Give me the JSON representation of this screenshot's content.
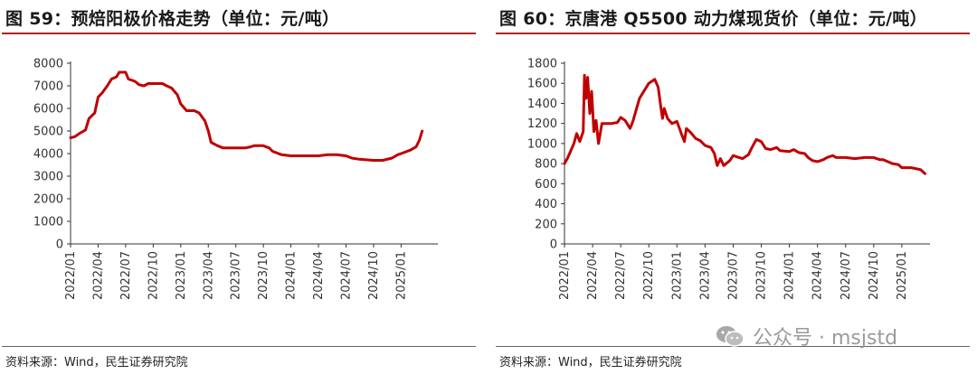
{
  "panels": [
    {
      "title": "图 59：预焙阳极价格走势（单位：元/吨）",
      "source": "资料来源：Wind，民生证券研究院"
    },
    {
      "title": "图 60：京唐港 Q5500 动力煤现货价（单位：元/吨）",
      "source": "资料来源：Wind，民生证券研究院"
    }
  ],
  "watermark": {
    "icon": "wechat-icon",
    "text": "公众号 · msjstd"
  },
  "colors": {
    "line": "#c00000",
    "axis": "#333333",
    "rule": "#b22222"
  },
  "chart_data": [
    {
      "type": "line",
      "title": "",
      "xlabel": "",
      "ylabel": "",
      "ylim": [
        0,
        8000
      ],
      "yticks": [
        0,
        1000,
        2000,
        3000,
        4000,
        5000,
        6000,
        7000,
        8000
      ],
      "xlim": [
        "2022-01",
        "2025-05"
      ],
      "xticks": [
        "2022/01",
        "2022/04",
        "2022/07",
        "2022/10",
        "2023/01",
        "2023/04",
        "2023/07",
        "2023/10",
        "2024/01",
        "2024/04",
        "2024/07",
        "2024/10",
        "2025/01"
      ],
      "grid": false,
      "series": [
        {
          "points": [
            [
              "2022-01-01",
              4700
            ],
            [
              "2022-01-15",
              4750
            ],
            [
              "2022-02-01",
              4900
            ],
            [
              "2022-02-20",
              5050
            ],
            [
              "2022-03-01",
              5550
            ],
            [
              "2022-03-20",
              5800
            ],
            [
              "2022-04-01",
              6500
            ],
            [
              "2022-04-15",
              6700
            ],
            [
              "2022-05-01",
              7000
            ],
            [
              "2022-05-15",
              7300
            ],
            [
              "2022-06-01",
              7400
            ],
            [
              "2022-06-10",
              7600
            ],
            [
              "2022-07-01",
              7600
            ],
            [
              "2022-07-10",
              7300
            ],
            [
              "2022-08-01",
              7200
            ],
            [
              "2022-08-15",
              7050
            ],
            [
              "2022-09-01",
              7000
            ],
            [
              "2022-09-15",
              7100
            ],
            [
              "2022-10-01",
              7100
            ],
            [
              "2022-11-01",
              7100
            ],
            [
              "2022-11-15",
              7000
            ],
            [
              "2022-12-01",
              6900
            ],
            [
              "2022-12-20",
              6600
            ],
            [
              "2023-01-01",
              6200
            ],
            [
              "2023-01-20",
              5900
            ],
            [
              "2023-02-15",
              5900
            ],
            [
              "2023-03-01",
              5800
            ],
            [
              "2023-03-20",
              5450
            ],
            [
              "2023-04-01",
              5000
            ],
            [
              "2023-04-10",
              4500
            ],
            [
              "2023-05-01",
              4350
            ],
            [
              "2023-05-20",
              4250
            ],
            [
              "2023-07-01",
              4250
            ],
            [
              "2023-08-01",
              4250
            ],
            [
              "2023-08-20",
              4300
            ],
            [
              "2023-09-01",
              4350
            ],
            [
              "2023-10-01",
              4350
            ],
            [
              "2023-10-20",
              4250
            ],
            [
              "2023-11-01",
              4100
            ],
            [
              "2023-12-01",
              3950
            ],
            [
              "2024-01-01",
              3900
            ],
            [
              "2024-03-01",
              3900
            ],
            [
              "2024-04-01",
              3900
            ],
            [
              "2024-05-01",
              3950
            ],
            [
              "2024-06-01",
              3950
            ],
            [
              "2024-07-01",
              3900
            ],
            [
              "2024-07-20",
              3800
            ],
            [
              "2024-08-15",
              3750
            ],
            [
              "2024-10-01",
              3700
            ],
            [
              "2024-11-01",
              3700
            ],
            [
              "2024-12-01",
              3800
            ],
            [
              "2024-12-20",
              3950
            ],
            [
              "2025-01-01",
              4000
            ],
            [
              "2025-02-01",
              4150
            ],
            [
              "2025-02-20",
              4300
            ],
            [
              "2025-03-01",
              4600
            ],
            [
              "2025-03-10",
              5000
            ]
          ]
        }
      ]
    },
    {
      "type": "line",
      "title": "",
      "xlabel": "",
      "ylabel": "",
      "ylim": [
        0,
        1800
      ],
      "yticks": [
        0,
        200,
        400,
        600,
        800,
        1000,
        1200,
        1400,
        1600,
        1800
      ],
      "xlim": [
        "2022-01",
        "2025-04"
      ],
      "xticks": [
        "2022/01",
        "2022/04",
        "2022/07",
        "2022/10",
        "2023/01",
        "2023/04",
        "2023/07",
        "2023/10",
        "2024/01",
        "2024/04",
        "2024/07",
        "2024/10",
        "2025/01"
      ],
      "grid": false,
      "series": [
        {
          "points": [
            [
              "2022-01-01",
              800
            ],
            [
              "2022-01-10",
              850
            ],
            [
              "2022-01-20",
              920
            ],
            [
              "2022-02-01",
              1000
            ],
            [
              "2022-02-10",
              1100
            ],
            [
              "2022-02-20",
              1020
            ],
            [
              "2022-03-01",
              1120
            ],
            [
              "2022-03-05",
              1680
            ],
            [
              "2022-03-10",
              1450
            ],
            [
              "2022-03-15",
              1660
            ],
            [
              "2022-03-22",
              1300
            ],
            [
              "2022-03-28",
              1520
            ],
            [
              "2022-04-05",
              1120
            ],
            [
              "2022-04-12",
              1230
            ],
            [
              "2022-04-20",
              1000
            ],
            [
              "2022-05-01",
              1200
            ],
            [
              "2022-05-15",
              1200
            ],
            [
              "2022-06-01",
              1200
            ],
            [
              "2022-06-20",
              1210
            ],
            [
              "2022-07-01",
              1260
            ],
            [
              "2022-07-15",
              1230
            ],
            [
              "2022-08-01",
              1150
            ],
            [
              "2022-08-10",
              1220
            ],
            [
              "2022-09-01",
              1450
            ],
            [
              "2022-10-01",
              1600
            ],
            [
              "2022-10-20",
              1640
            ],
            [
              "2022-11-01",
              1560
            ],
            [
              "2022-11-10",
              1350
            ],
            [
              "2022-11-15",
              1250
            ],
            [
              "2022-11-20",
              1350
            ],
            [
              "2022-12-01",
              1250
            ],
            [
              "2022-12-15",
              1200
            ],
            [
              "2023-01-01",
              1220
            ],
            [
              "2023-01-15",
              1100
            ],
            [
              "2023-01-25",
              1020
            ],
            [
              "2023-02-01",
              1150
            ],
            [
              "2023-02-15",
              1110
            ],
            [
              "2023-03-01",
              1050
            ],
            [
              "2023-03-15",
              1030
            ],
            [
              "2023-04-01",
              980
            ],
            [
              "2023-04-20",
              960
            ],
            [
              "2023-05-01",
              900
            ],
            [
              "2023-05-10",
              780
            ],
            [
              "2023-05-20",
              850
            ],
            [
              "2023-06-01",
              780
            ],
            [
              "2023-06-20",
              830
            ],
            [
              "2023-07-01",
              880
            ],
            [
              "2023-07-20",
              860
            ],
            [
              "2023-08-01",
              850
            ],
            [
              "2023-08-20",
              890
            ],
            [
              "2023-09-01",
              960
            ],
            [
              "2023-09-15",
              1040
            ],
            [
              "2023-10-01",
              1020
            ],
            [
              "2023-10-15",
              950
            ],
            [
              "2023-11-01",
              940
            ],
            [
              "2023-11-20",
              960
            ],
            [
              "2023-12-01",
              930
            ],
            [
              "2024-01-01",
              920
            ],
            [
              "2024-01-15",
              940
            ],
            [
              "2024-02-01",
              910
            ],
            [
              "2024-02-20",
              900
            ],
            [
              "2024-03-01",
              860
            ],
            [
              "2024-03-15",
              830
            ],
            [
              "2024-04-01",
              820
            ],
            [
              "2024-04-20",
              840
            ],
            [
              "2024-05-01",
              860
            ],
            [
              "2024-05-20",
              880
            ],
            [
              "2024-06-01",
              860
            ],
            [
              "2024-07-01",
              860
            ],
            [
              "2024-08-01",
              850
            ],
            [
              "2024-09-01",
              860
            ],
            [
              "2024-10-01",
              860
            ],
            [
              "2024-10-20",
              840
            ],
            [
              "2024-11-01",
              840
            ],
            [
              "2024-12-01",
              800
            ],
            [
              "2024-12-20",
              790
            ],
            [
              "2025-01-01",
              760
            ],
            [
              "2025-02-01",
              760
            ],
            [
              "2025-03-01",
              740
            ],
            [
              "2025-03-15",
              700
            ]
          ]
        }
      ]
    }
  ]
}
